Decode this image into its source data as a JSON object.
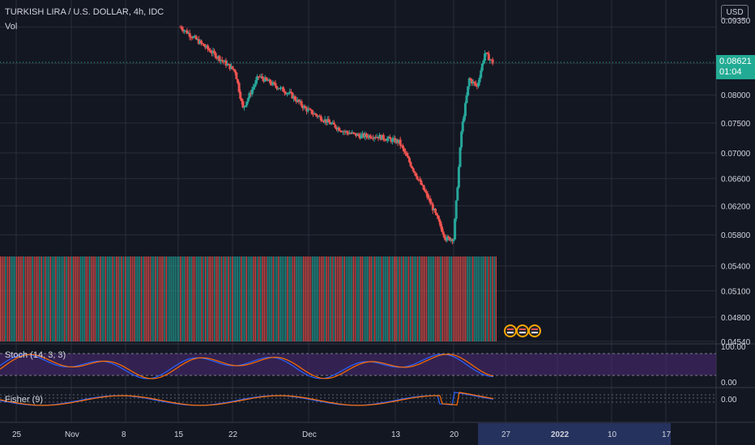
{
  "header": {
    "title": "TURKISH LIRA / U.S. DOLLAR, 4h, IDC",
    "volume_label": "Vol",
    "currency_button": "USD"
  },
  "price_badge": {
    "price": "0.08621",
    "countdown": "01:04",
    "color": "#22ab94"
  },
  "indicators": {
    "stoch_label": "Stoch (14, 3, 3)",
    "fisher_label": "Fisher (9)"
  },
  "colors": {
    "background": "#131722",
    "grid": "#2a2e39",
    "up": "#26a69a",
    "down": "#ef5350",
    "stoch_band": "#4a2a72",
    "stoch_k": "#2962ff",
    "stoch_d": "#ff6d00",
    "fisher_1": "#2962ff",
    "fisher_2": "#ff6d00",
    "axis_text": "#d1d4dc",
    "highlight_axis": "#2a3a6e"
  },
  "chart_data": [
    {
      "type": "candlestick",
      "title": "TURKISH LIRA / U.S. DOLLAR, 4h, IDC",
      "x_ticks": [
        "25",
        "Nov",
        "8",
        "15",
        "22",
        "Dec",
        "13",
        "20",
        "27",
        "2022",
        "10",
        "17"
      ],
      "y_ticks": [
        0.0935,
        0.086,
        0.08,
        0.075,
        0.07,
        0.066,
        0.062,
        0.058,
        0.054,
        0.051,
        0.048,
        0.0454
      ],
      "y_tick_labels": [
        "0.09350",
        "0.08621",
        "0.08000",
        "0.07500",
        "0.07000",
        "0.06600",
        "0.06200",
        "0.05800",
        "0.05400",
        "0.05100",
        "0.04800",
        "0.04540"
      ],
      "y_scale": "log",
      "last_price": 0.08621,
      "series": [
        {
          "values": [
            {
              "date": "Nov 15",
              "close": 0.0935
            },
            {
              "date": "Nov 22",
              "close": 0.0845
            },
            {
              "date": "Nov 23",
              "close": 0.0775
            },
            {
              "date": "Nov 25",
              "close": 0.0835
            },
            {
              "date": "Nov 29",
              "close": 0.0802
            },
            {
              "date": "Dec 1",
              "close": 0.0775
            },
            {
              "date": "Dec 6",
              "close": 0.0735
            },
            {
              "date": "Dec 8",
              "close": 0.0728
            },
            {
              "date": "Dec 10",
              "close": 0.0728
            },
            {
              "date": "Dec 13",
              "close": 0.0718
            },
            {
              "date": "Dec 15",
              "close": 0.067
            },
            {
              "date": "Dec 17",
              "close": 0.0625
            },
            {
              "date": "Dec 19",
              "close": 0.0575
            },
            {
              "date": "Dec 20",
              "close": 0.0575
            },
            {
              "date": "Dec 21",
              "close": 0.0735
            },
            {
              "date": "Dec 22",
              "close": 0.083
            },
            {
              "date": "Dec 23",
              "close": 0.0815
            },
            {
              "date": "Dec 24",
              "close": 0.088
            },
            {
              "date": "Dec 25",
              "close": 0.0862
            }
          ]
        }
      ],
      "grid": true
    },
    {
      "type": "bar",
      "title": "Vol"
    },
    {
      "type": "line",
      "title": "Stoch (14, 3, 3)",
      "y_ticks": [
        100,
        0
      ],
      "y_tick_labels": [
        "100.00",
        "0.00"
      ],
      "ylim": [
        0,
        100
      ]
    },
    {
      "type": "line",
      "title": "Fisher (9)",
      "y_ticks": [
        0
      ],
      "y_tick_labels": [
        "0.00"
      ]
    }
  ]
}
